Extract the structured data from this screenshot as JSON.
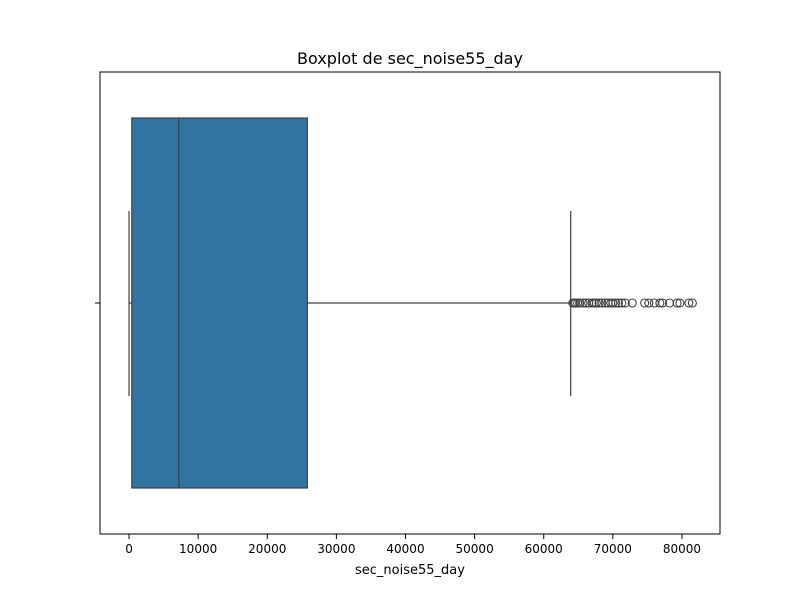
{
  "chart_data": {
    "type": "boxplot",
    "title": "Boxplot de sec_noise55_day",
    "xlabel": "sec_noise55_day",
    "ylabel": "",
    "xlim": [
      -4200,
      85500
    ],
    "xticks": [
      0,
      10000,
      20000,
      30000,
      40000,
      50000,
      60000,
      70000,
      80000
    ],
    "xtick_labels": [
      "0",
      "10000",
      "20000",
      "30000",
      "40000",
      "50000",
      "60000",
      "70000",
      "80000"
    ],
    "box": {
      "whisker_low": 0,
      "q1": 400,
      "median": 7200,
      "q3": 25800,
      "whisker_high": 63900
    },
    "outliers": [
      64200,
      64400,
      64600,
      64900,
      65200,
      65700,
      66100,
      66500,
      67000,
      67300,
      67600,
      68000,
      68400,
      68900,
      69300,
      69700,
      70000,
      70400,
      70800,
      71300,
      71800,
      72800,
      74600,
      75200,
      76000,
      76800,
      77200,
      78200,
      79300,
      79700,
      81000,
      81500
    ],
    "colors": {
      "box_fill": "#3274a1",
      "line": "#3f3f3f",
      "axis": "#000000"
    }
  }
}
